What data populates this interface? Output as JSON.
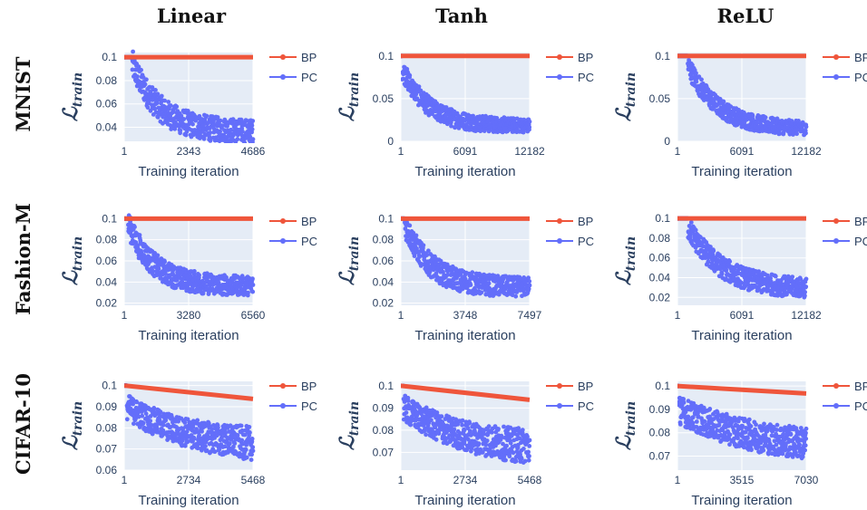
{
  "columns": [
    "Linear",
    "Tanh",
    "ReLU"
  ],
  "rows": [
    "MNIST",
    "Fashion-M",
    "CIFAR-10"
  ],
  "ylabel_main": "ℒ",
  "ylabel_sub": "train",
  "colors": {
    "BP": "#ef553b",
    "PC": "#636efa",
    "plot_bg": "#e5ecf6",
    "grid": "#ffffff",
    "text": "#2a3f5f"
  },
  "chart_data": [
    {
      "type": "scatter",
      "row": "MNIST",
      "column": "Linear",
      "xlabel": "Training iteration",
      "x_ticks": [
        1,
        2343,
        4686
      ],
      "xlim": [
        1,
        4686
      ],
      "y_ticks": [
        0.04,
        0.06,
        0.08,
        0.1
      ],
      "ylim": [
        0.028,
        0.104
      ],
      "series": [
        {
          "name": "BP",
          "kind": "line",
          "x": [
            1,
            4686
          ],
          "y": [
            0.1,
            0.1
          ]
        },
        {
          "name": "PC",
          "kind": "noisy",
          "plateau": 0.1,
          "plateau_until": 0.06,
          "start": 0.095,
          "end": 0.036,
          "tau": 0.22,
          "noise": [
            0.012,
            0.01
          ]
        }
      ]
    },
    {
      "type": "scatter",
      "row": "MNIST",
      "column": "Tanh",
      "xlabel": "Training iteration",
      "x_ticks": [
        1,
        6091,
        12182
      ],
      "xlim": [
        1,
        12182
      ],
      "y_ticks": [
        0,
        0.05,
        0.1
      ],
      "ylim": [
        0,
        0.104
      ],
      "series": [
        {
          "name": "BP",
          "kind": "line",
          "x": [
            1,
            12182
          ],
          "y": [
            0.1,
            0.1
          ]
        },
        {
          "name": "PC",
          "kind": "noisy",
          "plateau": 0.1,
          "plateau_until": 0.01,
          "start": 0.085,
          "end": 0.018,
          "tau": 0.2,
          "noise": [
            0.012,
            0.008
          ]
        }
      ]
    },
    {
      "type": "scatter",
      "row": "MNIST",
      "column": "ReLU",
      "xlabel": "Training iteration",
      "x_ticks": [
        1,
        6091,
        12182
      ],
      "xlim": [
        1,
        12182
      ],
      "y_ticks": [
        0,
        0.05,
        0.1
      ],
      "ylim": [
        0,
        0.104
      ],
      "series": [
        {
          "name": "BP",
          "kind": "line",
          "x": [
            1,
            12182
          ],
          "y": [
            0.1,
            0.1
          ]
        },
        {
          "name": "PC",
          "kind": "noisy",
          "plateau": 0.1,
          "plateau_until": 0.08,
          "start": 0.09,
          "end": 0.014,
          "tau": 0.25,
          "noise": [
            0.012,
            0.008
          ]
        }
      ]
    },
    {
      "type": "scatter",
      "row": "Fashion-M",
      "column": "Linear",
      "xlabel": "Training iteration",
      "x_ticks": [
        1,
        3280,
        6560
      ],
      "xlim": [
        1,
        6560
      ],
      "y_ticks": [
        0.02,
        0.04,
        0.06,
        0.08,
        0.1
      ],
      "ylim": [
        0.018,
        0.102
      ],
      "series": [
        {
          "name": "BP",
          "kind": "line",
          "x": [
            1,
            6560
          ],
          "y": [
            0.1,
            0.1
          ]
        },
        {
          "name": "PC",
          "kind": "noisy",
          "plateau": 0.1,
          "plateau_until": 0.03,
          "start": 0.095,
          "end": 0.036,
          "tau": 0.2,
          "noise": [
            0.012,
            0.009
          ]
        }
      ]
    },
    {
      "type": "scatter",
      "row": "Fashion-M",
      "column": "Tanh",
      "xlabel": "Training iteration",
      "x_ticks": [
        1,
        3748,
        7497
      ],
      "xlim": [
        1,
        7497
      ],
      "y_ticks": [
        0.02,
        0.04,
        0.06,
        0.08,
        0.1
      ],
      "ylim": [
        0.018,
        0.102
      ],
      "series": [
        {
          "name": "BP",
          "kind": "line",
          "x": [
            1,
            7497
          ],
          "y": [
            0.1,
            0.1
          ]
        },
        {
          "name": "PC",
          "kind": "noisy",
          "plateau": 0.1,
          "plateau_until": 0.03,
          "start": 0.095,
          "end": 0.035,
          "tau": 0.2,
          "noise": [
            0.012,
            0.009
          ]
        }
      ]
    },
    {
      "type": "scatter",
      "row": "Fashion-M",
      "column": "ReLU",
      "xlabel": "Training iteration",
      "x_ticks": [
        1,
        6091,
        12182
      ],
      "xlim": [
        1,
        12182
      ],
      "y_ticks": [
        0.02,
        0.04,
        0.06,
        0.08,
        0.1
      ],
      "ylim": [
        0.012,
        0.102
      ],
      "series": [
        {
          "name": "BP",
          "kind": "line",
          "x": [
            1,
            12182
          ],
          "y": [
            0.1,
            0.1
          ]
        },
        {
          "name": "PC",
          "kind": "noisy",
          "plateau": 0.1,
          "plateau_until": 0.08,
          "start": 0.092,
          "end": 0.028,
          "tau": 0.28,
          "noise": [
            0.012,
            0.01
          ]
        }
      ]
    },
    {
      "type": "scatter",
      "row": "CIFAR-10",
      "column": "Linear",
      "xlabel": "Training iteration",
      "x_ticks": [
        1,
        2734,
        5468
      ],
      "xlim": [
        1,
        5468
      ],
      "y_ticks": [
        0.06,
        0.07,
        0.08,
        0.09,
        0.1
      ],
      "ylim": [
        0.06,
        0.102
      ],
      "series": [
        {
          "name": "BP",
          "kind": "line",
          "x": [
            1,
            5468
          ],
          "y": [
            0.1,
            0.0937
          ]
        },
        {
          "name": "PC",
          "kind": "noisy",
          "plateau": 0.1,
          "plateau_until": 0.02,
          "start": 0.09,
          "end": 0.07,
          "tau": 0.5,
          "noise": [
            0.006,
            0.008
          ]
        }
      ]
    },
    {
      "type": "scatter",
      "row": "CIFAR-10",
      "column": "Tanh",
      "xlabel": "Training iteration",
      "x_ticks": [
        1,
        2734,
        5468
      ],
      "xlim": [
        1,
        5468
      ],
      "y_ticks": [
        0.07,
        0.08,
        0.09,
        0.1
      ],
      "ylim": [
        0.062,
        0.102
      ],
      "series": [
        {
          "name": "BP",
          "kind": "line",
          "x": [
            1,
            5468
          ],
          "y": [
            0.1,
            0.0937
          ]
        },
        {
          "name": "PC",
          "kind": "noisy",
          "plateau": 0.1,
          "plateau_until": 0.02,
          "start": 0.09,
          "end": 0.07,
          "tau": 0.5,
          "noise": [
            0.006,
            0.008
          ]
        }
      ]
    },
    {
      "type": "scatter",
      "row": "CIFAR-10",
      "column": "ReLU",
      "xlabel": "Training iteration",
      "x_ticks": [
        1,
        3515,
        7030
      ],
      "xlim": [
        1,
        7030
      ],
      "y_ticks": [
        0.07,
        0.08,
        0.09,
        0.1
      ],
      "ylim": [
        0.064,
        0.102
      ],
      "series": [
        {
          "name": "BP",
          "kind": "line",
          "x": [
            1,
            7030
          ],
          "y": [
            0.1,
            0.0968
          ]
        },
        {
          "name": "PC",
          "kind": "noisy",
          "plateau": 0.1,
          "plateau_until": 0.01,
          "start": 0.09,
          "end": 0.072,
          "tau": 0.6,
          "noise": [
            0.006,
            0.007
          ]
        }
      ]
    }
  ]
}
